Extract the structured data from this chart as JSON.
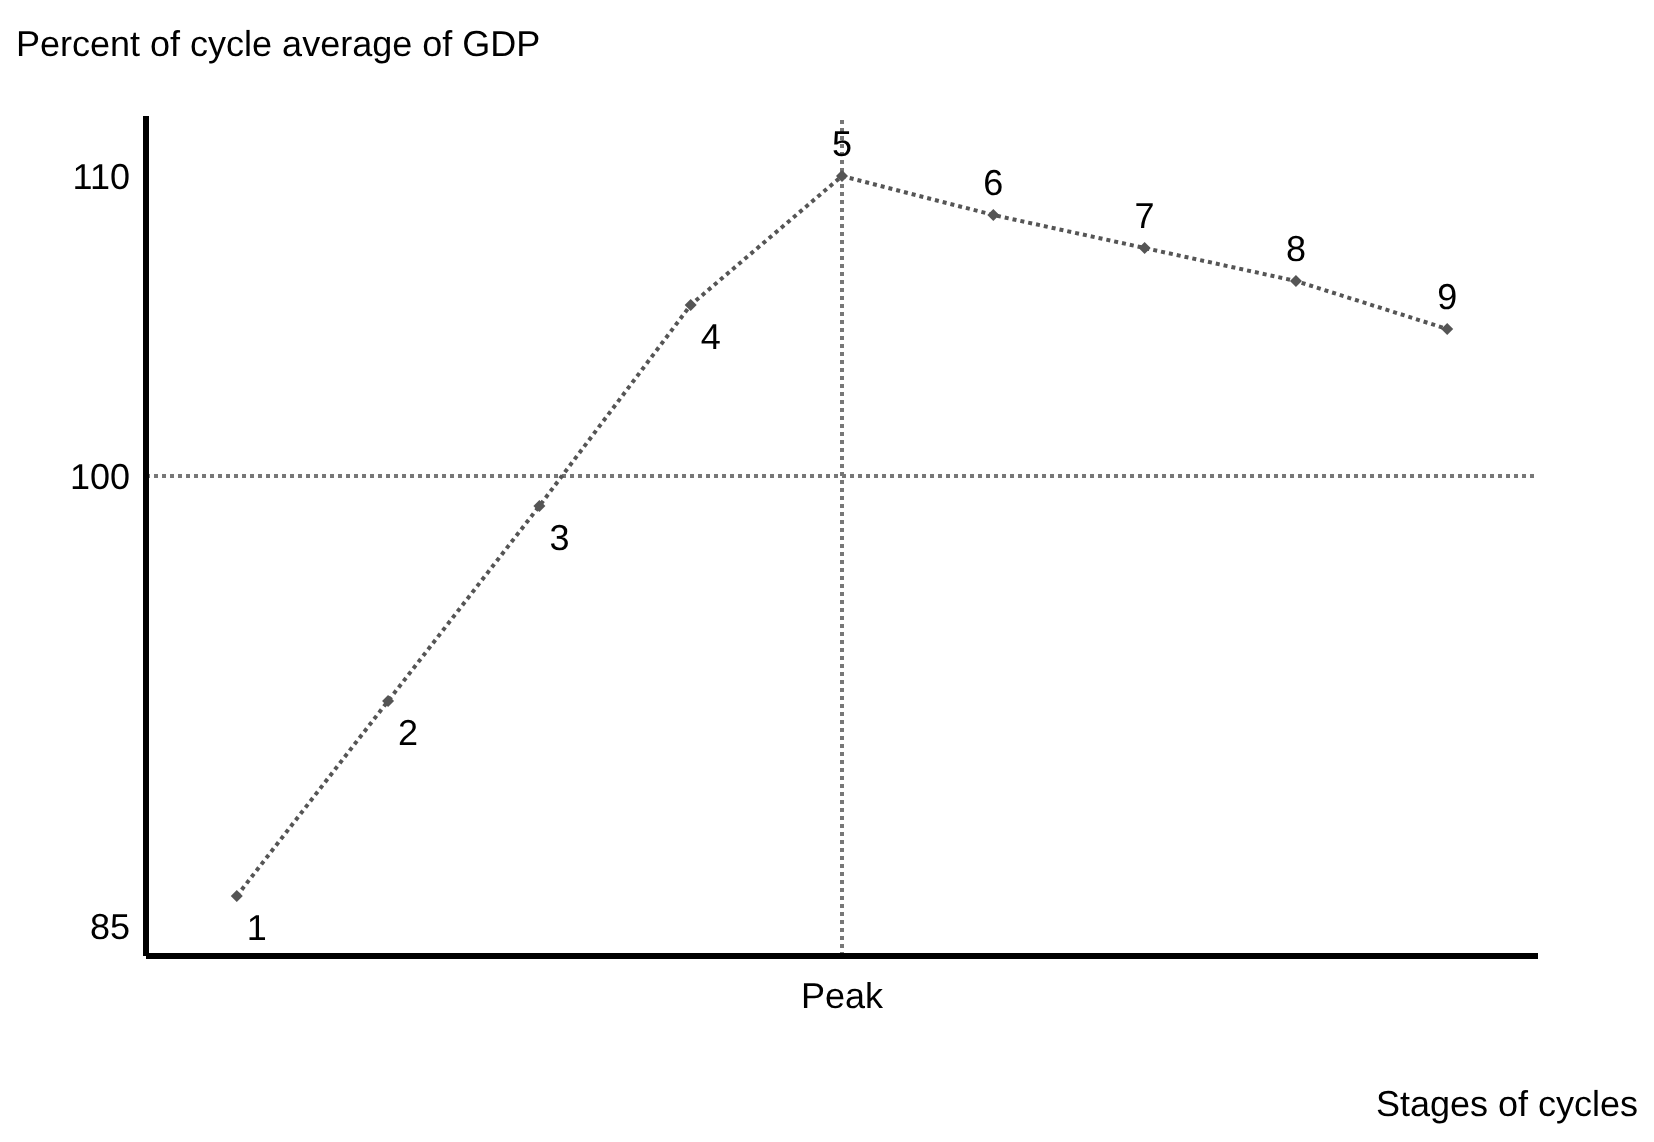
{
  "chart_data": {
    "type": "line",
    "ylabel": "Percent of cycle average of GDP",
    "xlabel": "Stages of cycles",
    "categories": [
      "1",
      "2",
      "3",
      "4",
      "5",
      "6",
      "7",
      "8",
      "9"
    ],
    "series": [
      {
        "color": "#555555",
        "values": [
          86,
          92.5,
          99,
          105.7,
          110,
          108.7,
          107.6,
          106.5,
          104.9
        ]
      }
    ],
    "ylim": [
      84,
      112
    ],
    "yticks": [
      85,
      100,
      110
    ],
    "tick_labels": "y",
    "grid": false,
    "legend": false,
    "marker": "diamond",
    "line_style": "dotted",
    "ref_lines": [
      {
        "axis": "y",
        "value": 100,
        "color": "#777777",
        "line_style": "dotted"
      },
      {
        "axis": "x",
        "value": "5",
        "label": "Peak",
        "color": "#777777",
        "line_style": "dotted"
      }
    ]
  }
}
